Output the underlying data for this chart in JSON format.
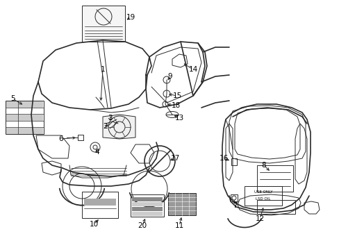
{
  "bg_color": "#ffffff",
  "line_color": "#2a2a2a",
  "text_color": "#000000",
  "fig_width": 4.89,
  "fig_height": 3.6,
  "dpi": 100,
  "xlim": [
    0,
    489
  ],
  "ylim": [
    0,
    360
  ]
}
